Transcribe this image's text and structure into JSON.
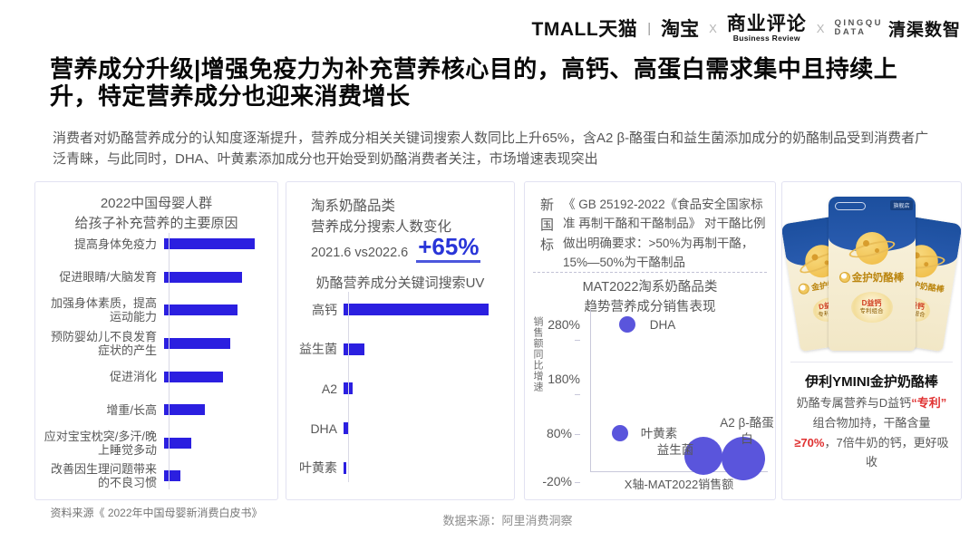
{
  "header": {
    "tmall": "TMALL天猫",
    "divider": "|",
    "taobao": "淘宝",
    "x1": "X",
    "biz_review_cn": "商业评论",
    "biz_review_en": "Business Review",
    "x2": "X",
    "qingqu_mark_line1": "QINGQU",
    "qingqu_mark_line2": "DATA",
    "qingqu_name": "清渠数智"
  },
  "title": "营养成分升级|增强免疫力为补充营养核心目的，高钙、高蛋白需求集中且持续上升，特定营养成分也迎来消费增长",
  "subtitle": "消费者对奶酪营养成分的认知度逐渐提升，营养成分相关关键词搜索人数同比上升65%，含A2 β-酪蛋白和益生菌添加成分的奶酪制品受到消费者广泛青睐，与此同时，DHA、叶黄素添加成分也开始受到奶酪消费者关注，市场增速表现突出",
  "panel1": {
    "title_line1": "2022中国母婴人群",
    "title_line2": "给孩子补充营养的主要原因",
    "source": "资料来源《 2022年中国母婴新消费白皮书》"
  },
  "panel2": {
    "title_line1": "淘系奶酪品类",
    "title_line2": "营养成分搜索人数变化",
    "compare": "2021.6 vs2022.6",
    "highlight": "+65%",
    "chart_title": "奶酪营养成分关键词搜索UV"
  },
  "panel3": {
    "badge": "新国标",
    "standard_text": "《 GB 25192-2022《食品安全国家标准 再制干酪和干酪制品》 对干酪比例做出明确要求：>50%为再制干酪，15%—50%为干酪制品",
    "chart_title_line1": "MAT2022淘系奶酪品类",
    "chart_title_line2": "趋势营养成分销售表现",
    "ylabel": "销售额同比增速",
    "xlabel": "X轴-MAT2022销售额"
  },
  "panel4": {
    "package": {
      "name": "金护奶酪棒",
      "badge_top": "D益钙",
      "badge_sub": "专利组合",
      "brand": "YMINI",
      "ribbon": "旗舰店"
    },
    "title": "伊利YMINI金护奶酪棒",
    "desc_segments": [
      {
        "text": "奶酪专属营养与D益钙",
        "red": false
      },
      {
        "text": "“专利”",
        "red": true
      },
      {
        "text": " 组合物加持，干酪含量",
        "red": false
      },
      {
        "text": "≥70%",
        "red": true
      },
      {
        "text": "，7倍牛奶的钙，更好吸收",
        "red": false
      }
    ]
  },
  "footer": {
    "data_source": "数据来源：阿里消费洞察"
  },
  "colors": {
    "bar_blue": "#2b1fe0",
    "bubble_purple": "#5a55dc",
    "highlight_blue": "#2935d8",
    "red_accent": "#e03030",
    "package_blue": "#1d4f9c"
  },
  "chart_data": [
    {
      "type": "bar",
      "orientation": "horizontal",
      "title": "2022中国母婴人群给孩子补充营养的主要原因",
      "categories": [
        "提高身体免疫力",
        "促进眼睛/大脑发育",
        "加强身体素质，提高运动能力",
        "预防婴幼儿不良发育症状的产生",
        "促进消化",
        "增重/长高",
        "应对宝宝枕突/多汗/晚上睡觉多动",
        "改善因生理问题带来的不良习惯"
      ],
      "values": [
        100,
        86,
        81,
        73,
        65,
        45,
        30,
        18
      ],
      "value_note": "relative share, no axis scale shown",
      "source": "资料来源《 2022年中国母婴新消费白皮书》"
    },
    {
      "type": "bar",
      "orientation": "horizontal",
      "title": "奶酪营养成分关键词搜索UV",
      "context": "淘系奶酪品类营养成分搜索人数变化 2021.6 vs2022.6 +65%",
      "categories": [
        "高钙",
        "益生菌",
        "A2",
        "DHA",
        "叶黄素"
      ],
      "values": [
        100,
        14.5,
        6,
        3.5,
        1.8
      ],
      "value_note": "relative search UV, no axis scale shown"
    },
    {
      "type": "scatter",
      "title": "MAT2022淘系奶酪品类趋势营养成分销售表现",
      "ylabel": "销售额同比增速",
      "xlabel": "X轴-MAT2022销售额",
      "yticks": [
        "280%",
        "180%",
        "80%",
        "-20%"
      ],
      "ylim": [
        -20,
        300
      ],
      "points": [
        {
          "label": "DHA",
          "x_rel": 0.21,
          "y_pct": 280,
          "r": 9
        },
        {
          "label": "叶黄素",
          "x_rel": 0.17,
          "y_pct": 80,
          "r": 9
        },
        {
          "label": "益生菌",
          "x_rel": 0.64,
          "y_pct": 38,
          "r": 21
        },
        {
          "label": "A2 β-酪蛋白",
          "x_rel": 0.86,
          "y_pct": 33,
          "r": 24
        }
      ]
    }
  ]
}
